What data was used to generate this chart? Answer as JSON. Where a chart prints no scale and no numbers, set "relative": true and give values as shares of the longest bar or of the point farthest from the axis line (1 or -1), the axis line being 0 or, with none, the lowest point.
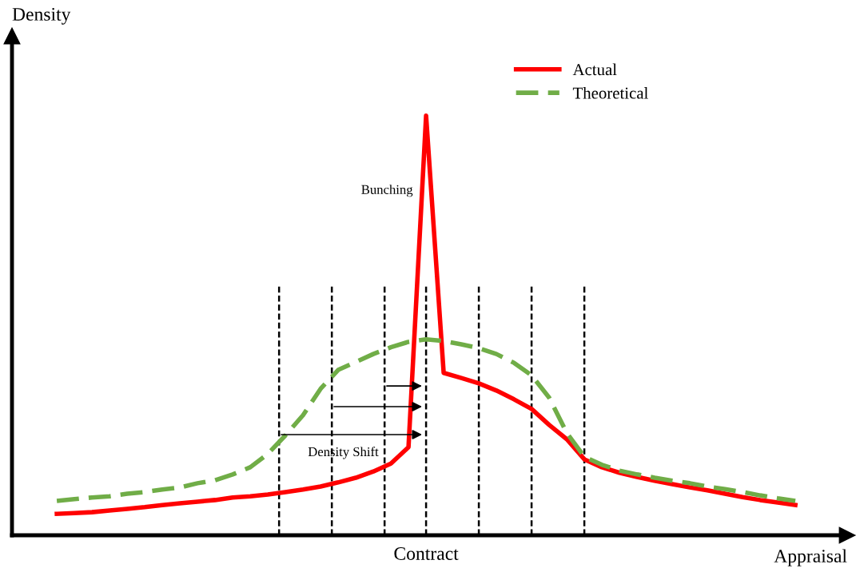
{
  "chart_data": {
    "type": "line",
    "relative": true,
    "xlabel": "Appraisal",
    "ylabel": "Density",
    "categories": [
      null,
      null,
      null,
      null,
      null,
      null,
      null,
      null,
      null,
      null,
      null,
      null,
      null,
      null,
      null,
      null,
      null,
      null,
      null,
      null,
      null,
      null,
      null,
      null,
      null,
      null,
      null,
      null,
      null,
      null,
      null,
      null,
      null,
      null,
      null,
      null,
      null,
      null,
      null,
      null,
      null,
      null,
      null
    ],
    "series": [
      {
        "name": "Actual",
        "color": "#ff0000",
        "line_style": "solid",
        "values": [
          0.051,
          0.053,
          0.055,
          0.059,
          0.063,
          0.067,
          0.072,
          0.076,
          0.08,
          0.084,
          0.09,
          0.093,
          0.097,
          0.103,
          0.109,
          0.116,
          0.126,
          0.137,
          0.152,
          0.171,
          0.21,
          1.0,
          0.387,
          0.375,
          0.362,
          0.345,
          0.324,
          0.301,
          0.263,
          0.229,
          0.181,
          0.162,
          0.149,
          0.139,
          0.13,
          0.122,
          0.114,
          0.107,
          0.099,
          0.091,
          0.084,
          0.078,
          0.072
        ]
      },
      {
        "name": "Theoretical",
        "color": "#70ad47",
        "line_style": "dashed",
        "values": [
          0.082,
          0.086,
          0.09,
          0.093,
          0.099,
          0.103,
          0.109,
          0.114,
          0.124,
          0.131,
          0.145,
          0.162,
          0.194,
          0.238,
          0.286,
          0.349,
          0.394,
          0.413,
          0.432,
          0.448,
          0.461,
          0.467,
          0.463,
          0.455,
          0.446,
          0.432,
          0.411,
          0.381,
          0.328,
          0.244,
          0.187,
          0.168,
          0.154,
          0.145,
          0.137,
          0.13,
          0.124,
          0.116,
          0.11,
          0.103,
          0.095,
          0.088,
          0.082
        ]
      }
    ],
    "annotations": [
      "Bunching",
      "Density Shift",
      "Contract"
    ],
    "legend": "top right",
    "grid": false
  }
}
